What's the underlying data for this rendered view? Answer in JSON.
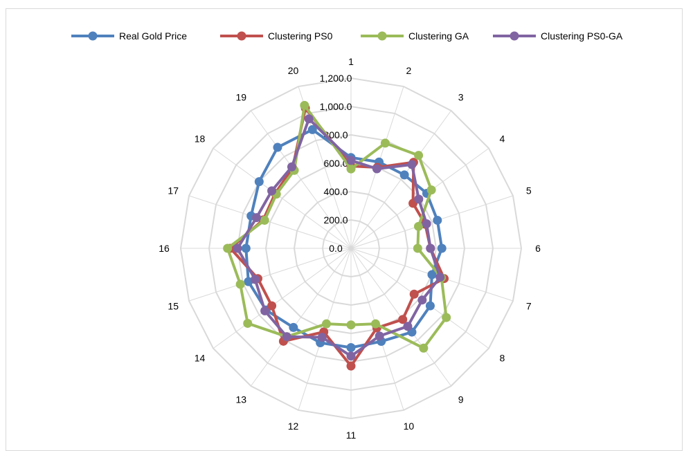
{
  "chart_data": {
    "type": "radar",
    "categories": [
      "1",
      "2",
      "3",
      "4",
      "5",
      "6",
      "7",
      "8",
      "9",
      "10",
      "11",
      "12",
      "13",
      "14",
      "15",
      "16",
      "17",
      "18",
      "19",
      "20"
    ],
    "radial_axis": {
      "min": 0,
      "max": 1200,
      "ticks": [
        0,
        200,
        400,
        600,
        800,
        1000,
        1200
      ],
      "tick_labels": [
        "0.0",
        "200.0",
        "400.0",
        "600.0",
        "800.0",
        "1,000.0",
        "1,200.0"
      ]
    },
    "grid": true,
    "legend_position": "top",
    "series": [
      {
        "name": "Real Gold Price",
        "color": "#4f81bd",
        "values": [
          640,
          640,
          640,
          660,
          640,
          640,
          600,
          690,
          730,
          690,
          700,
          700,
          690,
          740,
          760,
          740,
          740,
          800,
          880,
          880
        ]
      },
      {
        "name": "Clustering PS0",
        "color": "#c0504d",
        "values": [
          580,
          600,
          750,
          540,
          550,
          560,
          690,
          550,
          620,
          590,
          830,
          620,
          810,
          690,
          690,
          850,
          650,
          660,
          700,
          1040
        ]
      },
      {
        "name": "Clustering GA",
        "color": "#9bbb59",
        "values": [
          560,
          780,
          810,
          700,
          500,
          470,
          670,
          830,
          870,
          560,
          540,
          560,
          770,
          900,
          820,
          870,
          640,
          650,
          680,
          1060
        ]
      },
      {
        "name": "Clustering PS0-GA",
        "color": "#8064a2",
        "values": [
          620,
          590,
          730,
          590,
          560,
          560,
          660,
          620,
          680,
          650,
          760,
          660,
          770,
          750,
          710,
          800,
          700,
          690,
          710,
          960
        ]
      }
    ]
  }
}
